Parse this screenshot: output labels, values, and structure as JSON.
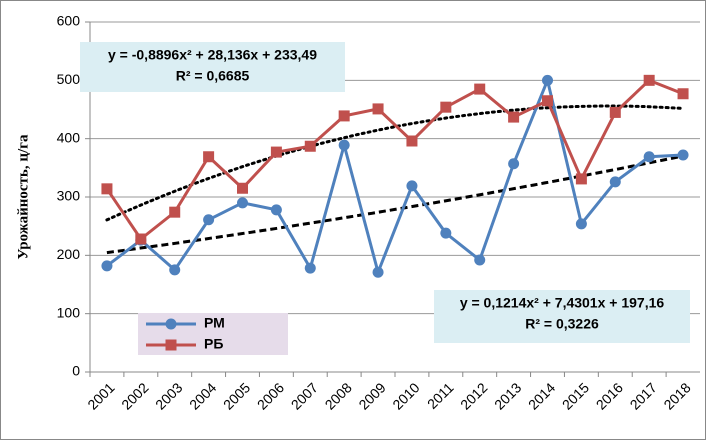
{
  "chart_data": {
    "type": "line",
    "ylabel": "Урожайность, ц/га",
    "categories": [
      "2001",
      "2002",
      "2003",
      "2004",
      "2005",
      "2006",
      "2007",
      "2008",
      "2009",
      "2010",
      "2011",
      "2012",
      "2013",
      "2014",
      "2015",
      "2016",
      "2017",
      "2018"
    ],
    "series": [
      {
        "name": "РМ",
        "color": "#4f81bd",
        "marker": "circle",
        "values": [
          182,
          226,
          175,
          261,
          290,
          278,
          178,
          389,
          171,
          319,
          238,
          192,
          357,
          500,
          254,
          326,
          369,
          372
        ]
      },
      {
        "name": "РБ",
        "color": "#c0504d",
        "marker": "square",
        "values": [
          314,
          228,
          274,
          369,
          315,
          377,
          387,
          439,
          451,
          396,
          454,
          485,
          437,
          465,
          331,
          445,
          500,
          477
        ]
      }
    ],
    "trendlines": [
      {
        "equation": "y = -0,8896x² + 28,136x + 233,49",
        "r2": "R² = 0,6685",
        "style": "dotted"
      },
      {
        "equation": "y = 0,1214x² + 7,4301x + 197,16",
        "r2": "R² = 0,3226",
        "style": "dashed"
      }
    ],
    "ylim": [
      0,
      600
    ],
    "yticks": [
      0,
      100,
      200,
      300,
      400,
      500,
      600
    ],
    "grid": true
  }
}
